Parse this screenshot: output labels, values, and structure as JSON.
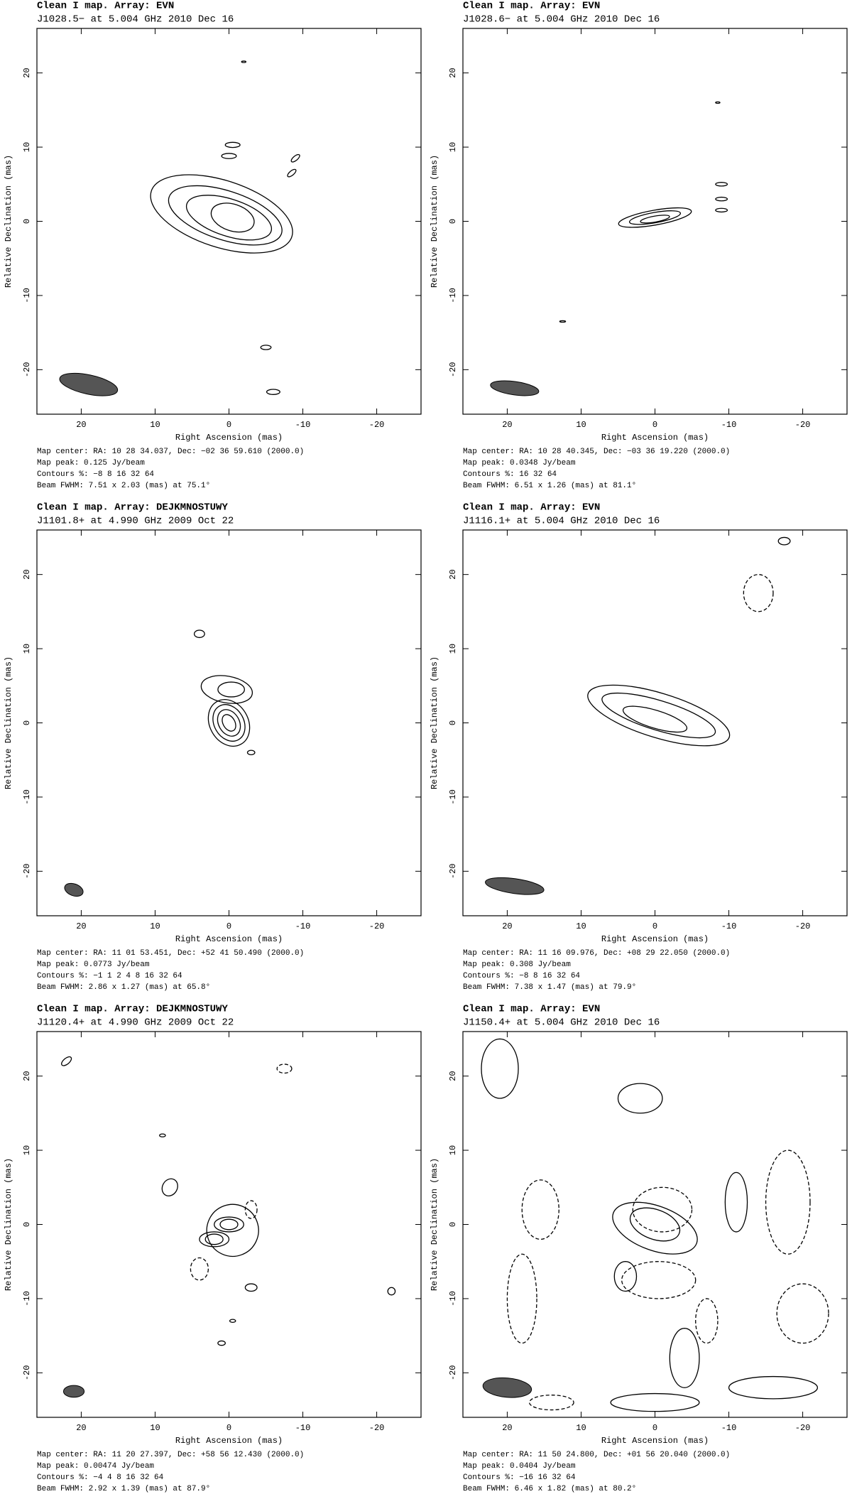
{
  "chart_data": [
    {
      "type": "contour",
      "title": "Clean I map.  Array:  EVN",
      "subtitle": "J1028.5− at 5.004 GHz 2010 Dec 16",
      "xlabel": "Right Ascension  (mas)",
      "ylabel": "Relative Declination  (mas)",
      "xlim": [
        26,
        -26
      ],
      "ylim": [
        -26,
        26
      ],
      "xticks": [
        20,
        10,
        0,
        -10,
        -20
      ],
      "yticks": [
        -20,
        -10,
        0,
        10,
        20
      ],
      "notes": [
        "Map center:  RA: 10 28 34.037,  Dec: −02 36 59.610 (2000.0)",
        "Map peak: 0.125 Jy/beam",
        "Contours %: −8 8 16 32 64",
        "Beam FWHM: 7.51 x 2.03 (mas) at 75.1°"
      ]
    },
    {
      "type": "contour",
      "title": "Clean I map.  Array:  EVN",
      "subtitle": "J1028.6− at 5.004 GHz 2010 Dec 16",
      "xlabel": "Right Ascension  (mas)",
      "ylabel": "Relative Declination  (mas)",
      "xlim": [
        26,
        -26
      ],
      "ylim": [
        -26,
        26
      ],
      "xticks": [
        20,
        10,
        0,
        -10,
        -20
      ],
      "yticks": [
        -20,
        -10,
        0,
        10,
        20
      ],
      "notes": [
        "Map center:  RA: 10 28 40.345,  Dec: −03 36 19.220 (2000.0)",
        "Map peak: 0.0348 Jy/beam",
        "Contours %: 16 32 64",
        "Beam FWHM: 6.51 x 1.26 (mas) at 81.1°"
      ]
    },
    {
      "type": "contour",
      "title": "Clean I map.  Array:  DEJKMNOSTUWY",
      "subtitle": "J1101.8+ at 4.990 GHz 2009 Oct 22",
      "xlabel": "Right Ascension  (mas)",
      "ylabel": "Relative Declination  (mas)",
      "xlim": [
        26,
        -26
      ],
      "ylim": [
        -26,
        26
      ],
      "xticks": [
        20,
        10,
        0,
        -10,
        -20
      ],
      "yticks": [
        -20,
        -10,
        0,
        10,
        20
      ],
      "notes": [
        "Map center:  RA: 11 01 53.451,  Dec: +52 41 50.490 (2000.0)",
        "Map peak: 0.0773 Jy/beam",
        "Contours %: −1 1 2 4 8 16 32 64",
        "Beam FWHM: 2.86 x 1.27 (mas) at 65.8°"
      ]
    },
    {
      "type": "contour",
      "title": "Clean I map.  Array:  EVN",
      "subtitle": "J1116.1+ at 5.004 GHz 2010 Dec 16",
      "xlabel": "Right Ascension  (mas)",
      "ylabel": "Relative Declination  (mas)",
      "xlim": [
        26,
        -26
      ],
      "ylim": [
        -26,
        26
      ],
      "xticks": [
        20,
        10,
        0,
        -10,
        -20
      ],
      "yticks": [
        -20,
        -10,
        0,
        10,
        20
      ],
      "notes": [
        "Map center:  RA: 11 16 09.976,  Dec: +08 29 22.050 (2000.0)",
        "Map peak: 0.308 Jy/beam",
        "Contours %: −8 8 16 32 64",
        "Beam FWHM: 7.38 x 1.47 (mas) at 79.9°"
      ]
    },
    {
      "type": "contour",
      "title": "Clean I map.  Array:  DEJKMNOSTUWY",
      "subtitle": "J1120.4+ at 4.990 GHz 2009 Oct 22",
      "xlabel": "Right Ascension  (mas)",
      "ylabel": "Relative Declination  (mas)",
      "xlim": [
        26,
        -26
      ],
      "ylim": [
        -26,
        26
      ],
      "xticks": [
        20,
        10,
        0,
        -10,
        -20
      ],
      "yticks": [
        -20,
        -10,
        0,
        10,
        20
      ],
      "notes": [
        "Map center:  RA: 11 20 27.397,  Dec: +58 56 12.430 (2000.0)",
        "Map peak: 0.00474 Jy/beam",
        "Contours %: −4 4 8 16 32 64",
        "Beam FWHM: 2.92 x 1.39 (mas) at 87.9°"
      ]
    },
    {
      "type": "contour",
      "title": "Clean I map.  Array:  EVN",
      "subtitle": "J1150.4+ at 5.004 GHz 2010 Dec 16",
      "xlabel": "Right Ascension  (mas)",
      "ylabel": "Relative Declination  (mas)",
      "xlim": [
        26,
        -26
      ],
      "ylim": [
        -26,
        26
      ],
      "xticks": [
        20,
        10,
        0,
        -10,
        -20
      ],
      "yticks": [
        -20,
        -10,
        0,
        10,
        20
      ],
      "notes": [
        "Map center:  RA: 11 50 24.800,  Dec: +01 56 20.040 (2000.0)",
        "Map peak: 0.0404 Jy/beam",
        "Contours %: −16 16 32 64",
        "Beam FWHM: 6.46 x 1.82 (mas) at 80.2°"
      ]
    }
  ]
}
